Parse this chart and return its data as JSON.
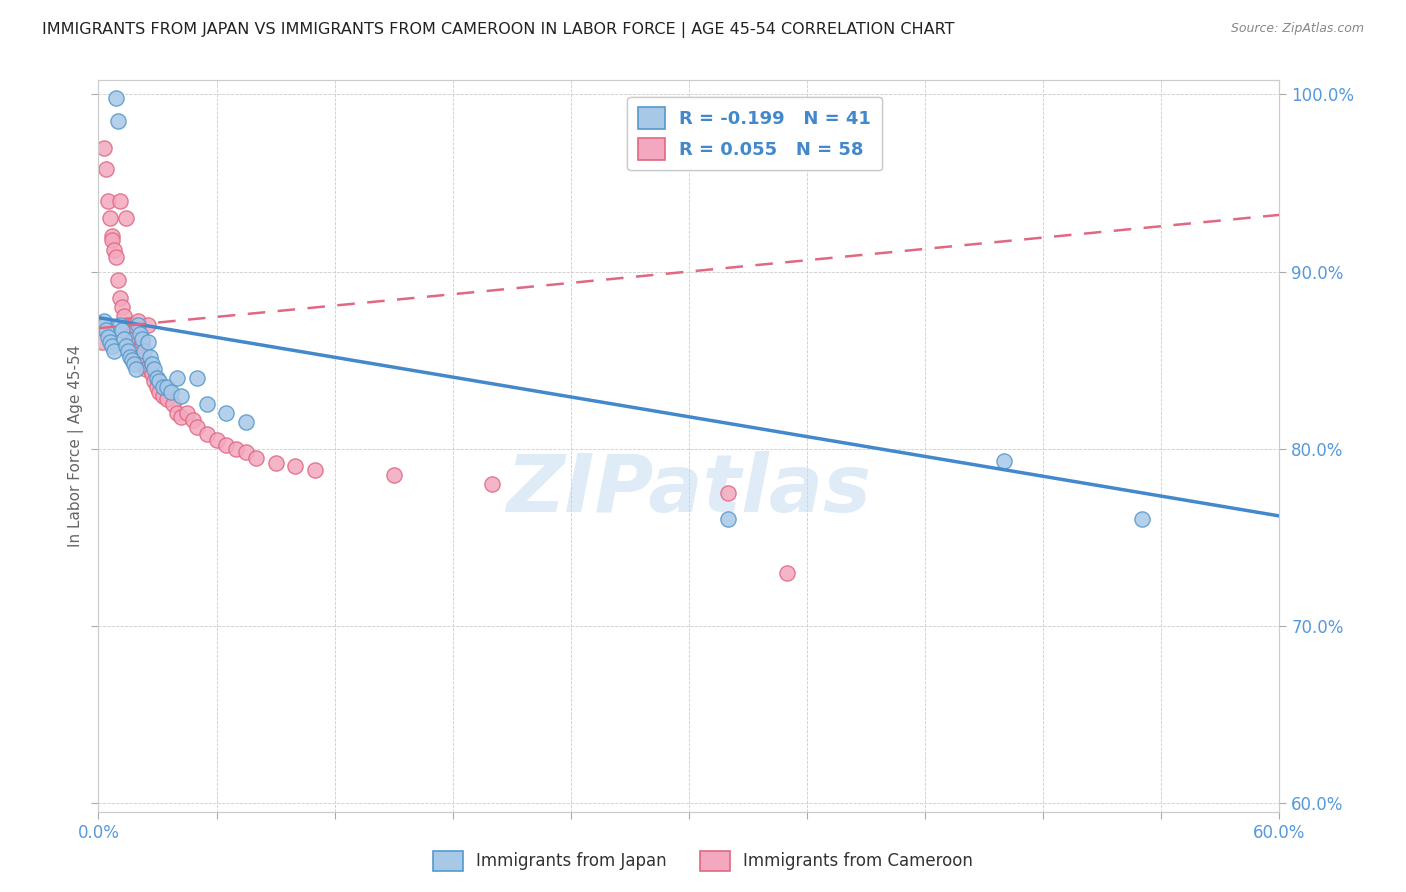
{
  "title": "IMMIGRANTS FROM JAPAN VS IMMIGRANTS FROM CAMEROON IN LABOR FORCE | AGE 45-54 CORRELATION CHART",
  "source": "Source: ZipAtlas.com",
  "ylabel": "In Labor Force | Age 45-54",
  "xlim": [
    0.0,
    0.6
  ],
  "ylim": [
    0.595,
    1.008
  ],
  "ytick_values": [
    0.6,
    0.7,
    0.8,
    0.9,
    1.0
  ],
  "ytick_labels": [
    "60.0%",
    "70.0%",
    "80.0%",
    "90.0%",
    "100.0%"
  ],
  "xtick_positions": [
    0.0,
    0.06,
    0.12,
    0.18,
    0.24,
    0.3,
    0.36,
    0.42,
    0.48,
    0.54,
    0.6
  ],
  "japan_color": "#a8c8e8",
  "cameroon_color": "#f4a8c0",
  "japan_edge_color": "#5599cc",
  "cameroon_edge_color": "#e06880",
  "japan_line_color": "#4488cc",
  "cameroon_line_color": "#e06880",
  "japan_R": -0.199,
  "japan_N": 41,
  "cameroon_R": 0.055,
  "cameroon_N": 58,
  "watermark": "ZIPatlas",
  "japan_line_y0": 0.874,
  "japan_line_y1": 0.762,
  "cameroon_line_y0": 0.868,
  "cameroon_line_y1": 0.932,
  "japan_x": [
    0.002,
    0.003,
    0.003,
    0.004,
    0.005,
    0.006,
    0.007,
    0.008,
    0.009,
    0.01,
    0.011,
    0.012,
    0.013,
    0.014,
    0.015,
    0.016,
    0.017,
    0.018,
    0.019,
    0.02,
    0.021,
    0.022,
    0.023,
    0.025,
    0.026,
    0.027,
    0.028,
    0.03,
    0.031,
    0.033,
    0.035,
    0.037,
    0.04,
    0.042,
    0.05,
    0.055,
    0.065,
    0.075,
    0.32,
    0.46,
    0.53
  ],
  "japan_y": [
    0.87,
    0.872,
    0.87,
    0.867,
    0.863,
    0.86,
    0.858,
    0.855,
    0.998,
    0.985,
    0.87,
    0.867,
    0.862,
    0.858,
    0.855,
    0.852,
    0.85,
    0.848,
    0.845,
    0.87,
    0.865,
    0.862,
    0.855,
    0.86,
    0.852,
    0.848,
    0.845,
    0.84,
    0.838,
    0.835,
    0.835,
    0.832,
    0.84,
    0.83,
    0.84,
    0.825,
    0.82,
    0.815,
    0.76,
    0.793,
    0.76
  ],
  "cameroon_x": [
    0.002,
    0.003,
    0.004,
    0.005,
    0.006,
    0.007,
    0.007,
    0.008,
    0.009,
    0.01,
    0.011,
    0.011,
    0.012,
    0.013,
    0.014,
    0.014,
    0.015,
    0.016,
    0.016,
    0.017,
    0.017,
    0.018,
    0.018,
    0.019,
    0.02,
    0.02,
    0.021,
    0.022,
    0.022,
    0.023,
    0.024,
    0.025,
    0.026,
    0.027,
    0.028,
    0.03,
    0.031,
    0.033,
    0.035,
    0.038,
    0.04,
    0.042,
    0.045,
    0.048,
    0.05,
    0.055,
    0.06,
    0.065,
    0.07,
    0.075,
    0.08,
    0.09,
    0.1,
    0.11,
    0.15,
    0.2,
    0.32,
    0.35
  ],
  "cameroon_y": [
    0.86,
    0.97,
    0.958,
    0.94,
    0.93,
    0.92,
    0.918,
    0.912,
    0.908,
    0.895,
    0.94,
    0.885,
    0.88,
    0.875,
    0.87,
    0.93,
    0.865,
    0.858,
    0.87,
    0.862,
    0.87,
    0.855,
    0.87,
    0.855,
    0.85,
    0.872,
    0.852,
    0.85,
    0.86,
    0.848,
    0.845,
    0.87,
    0.845,
    0.842,
    0.838,
    0.835,
    0.832,
    0.83,
    0.828,
    0.825,
    0.82,
    0.818,
    0.82,
    0.816,
    0.812,
    0.808,
    0.805,
    0.802,
    0.8,
    0.798,
    0.795,
    0.792,
    0.79,
    0.788,
    0.785,
    0.78,
    0.775,
    0.73
  ]
}
